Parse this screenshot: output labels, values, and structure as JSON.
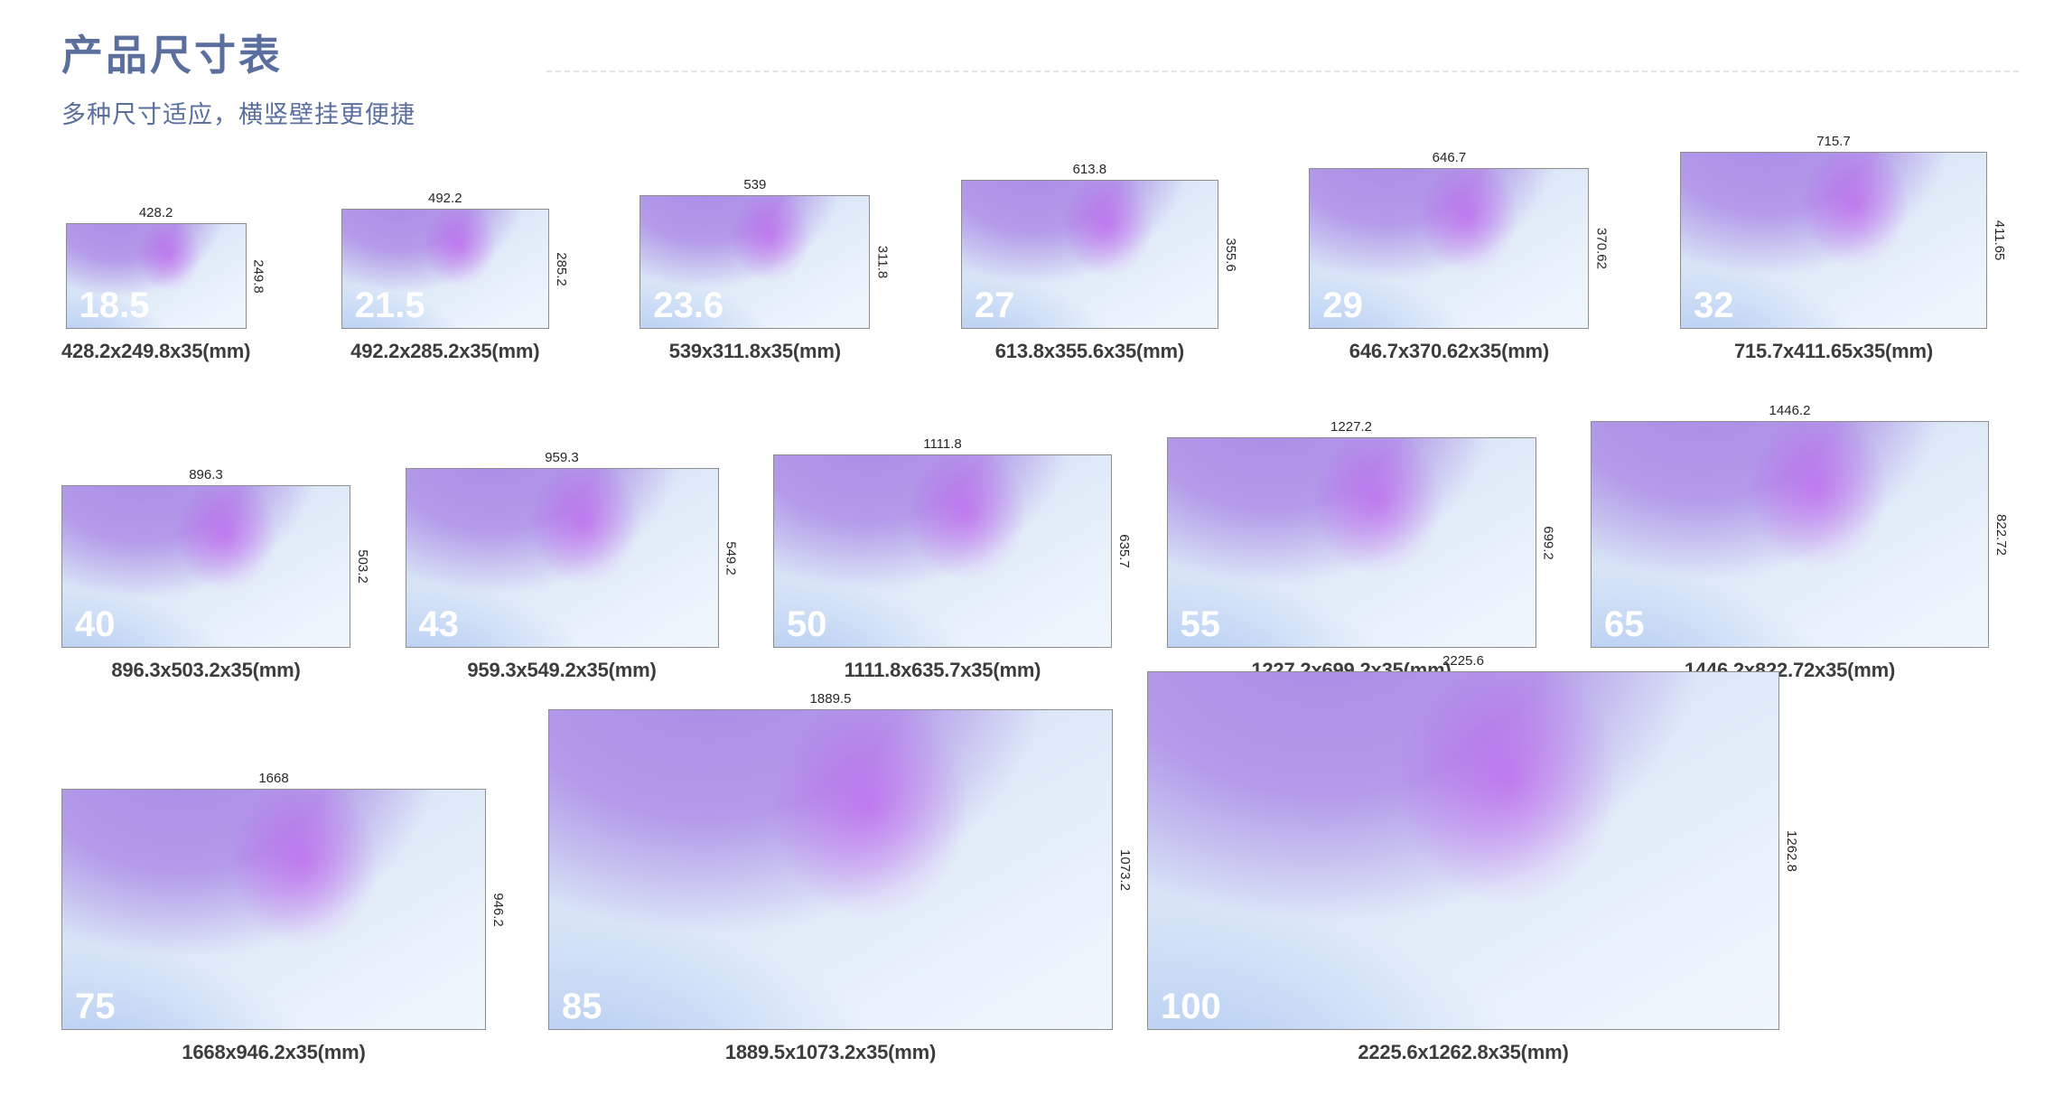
{
  "header": {
    "title": "产品尺寸表",
    "subtitle": "多种尺寸适应，横竖壁挂更便捷"
  },
  "colors": {
    "accent_text": "#5a6f9e",
    "caption_text": "#3c3c3c",
    "label_text": "#262626",
    "panel_purple": "#a88ae6",
    "panel_blue": "#84a9ee",
    "panel_magenta": "#be46ee"
  },
  "rows": [
    {
      "items": [
        {
          "size_label": "18.5",
          "width_mm": "428.2",
          "height_mm": "249.8",
          "caption": "428.2x249.8x35(mm)"
        },
        {
          "size_label": "21.5",
          "width_mm": "492.2",
          "height_mm": "285.2",
          "caption": "492.2x285.2x35(mm)"
        },
        {
          "size_label": "23.6",
          "width_mm": "539",
          "height_mm": "311.8",
          "caption": "539x311.8x35(mm)"
        },
        {
          "size_label": "27",
          "width_mm": "613.8",
          "height_mm": "355.6",
          "caption": "613.8x355.6x35(mm)"
        },
        {
          "size_label": "29",
          "width_mm": "646.7",
          "height_mm": "370.62",
          "caption": "646.7x370.62x35(mm)"
        },
        {
          "size_label": "32",
          "width_mm": "715.7",
          "height_mm": "411.65",
          "caption": "715.7x411.65x35(mm)"
        }
      ]
    },
    {
      "items": [
        {
          "size_label": "40",
          "width_mm": "896.3",
          "height_mm": "503.2",
          "caption": "896.3x503.2x35(mm)"
        },
        {
          "size_label": "43",
          "width_mm": "959.3",
          "height_mm": "549.2",
          "caption": "959.3x549.2x35(mm)"
        },
        {
          "size_label": "50",
          "width_mm": "1111.8",
          "height_mm": "635.7",
          "caption": "1111.8x635.7x35(mm)"
        },
        {
          "size_label": "55",
          "width_mm": "1227.2",
          "height_mm": "699.2",
          "caption": "1227.2x699.2x35(mm)"
        },
        {
          "size_label": "65",
          "width_mm": "1446.2",
          "height_mm": "822.72",
          "caption": "1446.2x822.72x35(mm)"
        }
      ]
    },
    {
      "items": [
        {
          "size_label": "75",
          "width_mm": "1668",
          "height_mm": "946.2",
          "caption": "1668x946.2x35(mm)"
        },
        {
          "size_label": "85",
          "width_mm": "1889.5",
          "height_mm": "1073.2",
          "caption": "1889.5x1073.2x35(mm)"
        },
        {
          "size_label": "100",
          "width_mm": "2225.6",
          "height_mm": "1262.8",
          "caption": "2225.6x1262.8x35(mm)"
        }
      ]
    }
  ]
}
